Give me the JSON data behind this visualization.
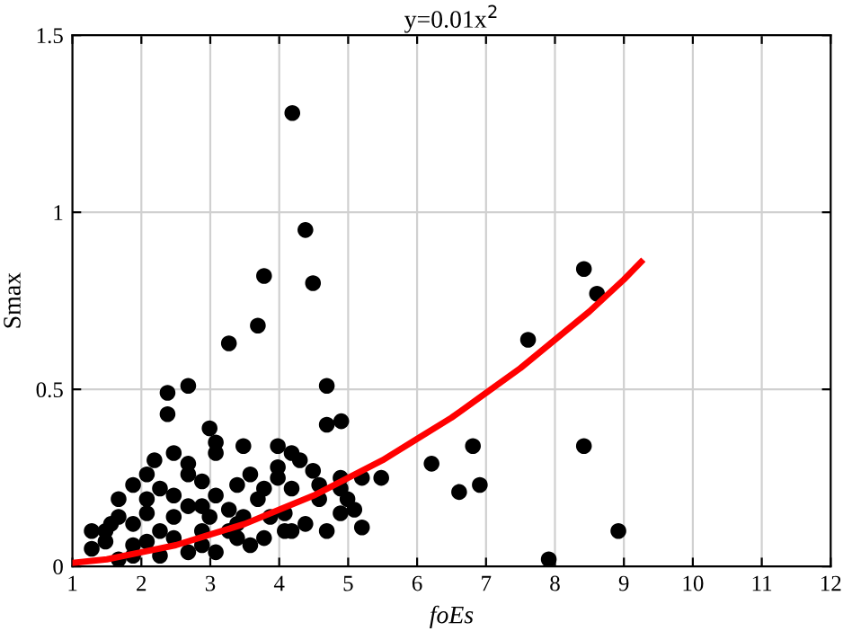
{
  "chart_data": {
    "type": "scatter",
    "title": "y=0.01x$^{2}$",
    "xlabel": "foEs",
    "ylabel": "Smax",
    "xlim": [
      1,
      12
    ],
    "xticks": [
      1,
      2,
      3,
      4,
      5,
      6,
      7,
      8,
      9,
      10,
      11,
      12
    ],
    "ylim": [
      0,
      1.5
    ],
    "yticks": [
      0,
      0.5,
      1,
      1.5
    ],
    "grid": true,
    "series": [
      {
        "marker": "circle",
        "color": "#000000",
        "x": [
          4.19,
          4.38,
          3.78,
          4.49,
          3.69,
          3.27,
          2.68,
          2.38,
          2.38,
          4.69,
          4.69,
          4.9,
          2.99,
          3.08,
          3.08,
          3.48,
          3.98,
          4.18,
          4.3,
          3.98,
          3.98,
          4.49,
          2.47,
          2.19,
          2.08,
          2.68,
          2.68,
          1.88,
          1.67,
          2.08,
          2.27,
          2.88,
          3.58,
          3.39,
          4.89,
          5.2,
          5.48,
          4.58,
          4.18,
          4.58,
          4.89,
          4.99,
          5.09,
          4.89,
          5.2,
          4.69,
          4.38,
          4.18,
          1.28,
          1.28,
          1.48,
          1.67,
          1.56,
          2.08,
          2.47,
          2.88,
          3.08,
          3.27,
          3.69,
          3.78,
          3.48,
          3.87,
          3.78,
          3.58,
          3.08,
          2.68,
          2.27,
          1.67,
          1.88,
          2.47,
          2.88,
          3.27,
          2.68,
          2.27,
          1.48,
          1.88,
          3.39,
          2.99,
          2.47,
          4.08,
          4.08,
          1.88,
          2.88,
          3.39,
          2.08,
          6.21,
          6.81,
          6.61,
          6.91,
          7.61,
          8.42,
          8.61,
          8.42,
          8.92,
          7.91
        ],
        "values": [
          1.28,
          0.95,
          0.82,
          0.8,
          0.68,
          0.63,
          0.51,
          0.49,
          0.43,
          0.51,
          0.4,
          0.41,
          0.39,
          0.35,
          0.32,
          0.34,
          0.34,
          0.32,
          0.3,
          0.28,
          0.25,
          0.27,
          0.32,
          0.3,
          0.26,
          0.29,
          0.26,
          0.23,
          0.19,
          0.19,
          0.22,
          0.24,
          0.26,
          0.23,
          0.25,
          0.25,
          0.25,
          0.23,
          0.22,
          0.19,
          0.22,
          0.19,
          0.16,
          0.15,
          0.11,
          0.1,
          0.12,
          0.1,
          0.1,
          0.05,
          0.07,
          0.14,
          0.12,
          0.15,
          0.14,
          0.17,
          0.2,
          0.16,
          0.19,
          0.22,
          0.14,
          0.14,
          0.08,
          0.06,
          0.04,
          0.04,
          0.03,
          0.02,
          0.06,
          0.08,
          0.1,
          0.1,
          0.17,
          0.1,
          0.1,
          0.12,
          0.12,
          0.14,
          0.2,
          0.15,
          0.1,
          0.03,
          0.06,
          0.08,
          0.07,
          0.29,
          0.34,
          0.21,
          0.23,
          0.64,
          0.34,
          0.77,
          0.84,
          0.1,
          0.02
        ]
      },
      {
        "type": "line",
        "color": "#ff0000",
        "x": [
          1,
          1.5,
          2,
          2.5,
          3,
          3.5,
          4,
          4.5,
          5,
          5.5,
          6,
          6.5,
          7,
          7.5,
          8,
          8.5,
          9,
          9.25
        ],
        "values": [
          0.01,
          0.02,
          0.04,
          0.06,
          0.09,
          0.12,
          0.16,
          0.2,
          0.25,
          0.3,
          0.36,
          0.42,
          0.49,
          0.56,
          0.64,
          0.72,
          0.81,
          0.86
        ]
      }
    ]
  }
}
